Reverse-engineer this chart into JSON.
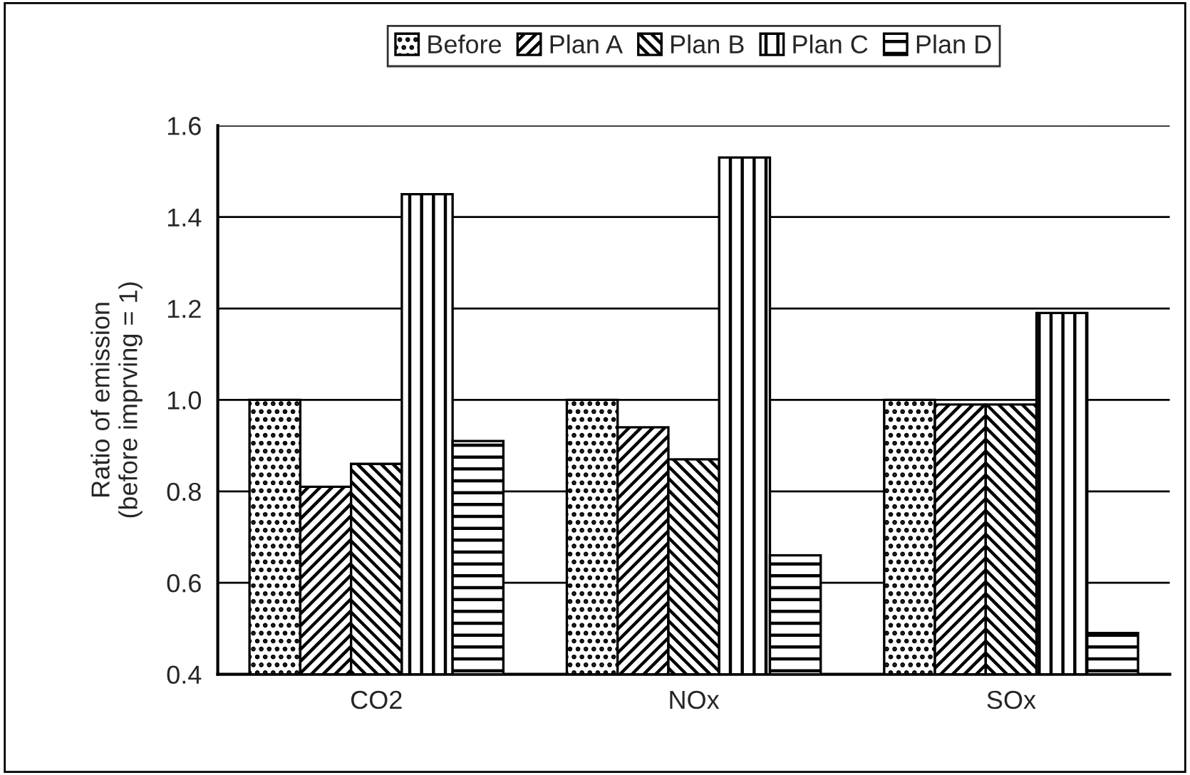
{
  "chart_data": {
    "type": "bar",
    "ylabel": "Ratio of emission\n(before imprving = 1)",
    "categories": [
      "CO2",
      "NOx",
      "SOx"
    ],
    "series": [
      {
        "name": "Before",
        "color": "#000000",
        "values": [
          1.0,
          1.0,
          1.0
        ]
      },
      {
        "name": "Plan A",
        "color": "#000000",
        "values": [
          0.81,
          0.94,
          0.99
        ]
      },
      {
        "name": "Plan B",
        "color": "#000000",
        "values": [
          0.86,
          0.87,
          0.99
        ]
      },
      {
        "name": "Plan C",
        "color": "#000000",
        "values": [
          1.45,
          1.53,
          1.19
        ]
      },
      {
        "name": "Plan D",
        "color": "#000000",
        "values": [
          0.91,
          0.66,
          0.49
        ]
      }
    ],
    "ylim": [
      0.4,
      1.6
    ],
    "yticks": [
      {
        "value": 0.4,
        "label": "0.4"
      },
      {
        "value": 0.6,
        "label": "0.6"
      },
      {
        "value": 0.8,
        "label": "0.8"
      },
      {
        "value": 1.0,
        "label": "1.0"
      },
      {
        "value": 1.2,
        "label": "1.2"
      },
      {
        "value": 1.4,
        "label": "1.4"
      },
      {
        "value": 1.6,
        "label": "1.6"
      }
    ],
    "grid": "y",
    "legend": "top"
  }
}
